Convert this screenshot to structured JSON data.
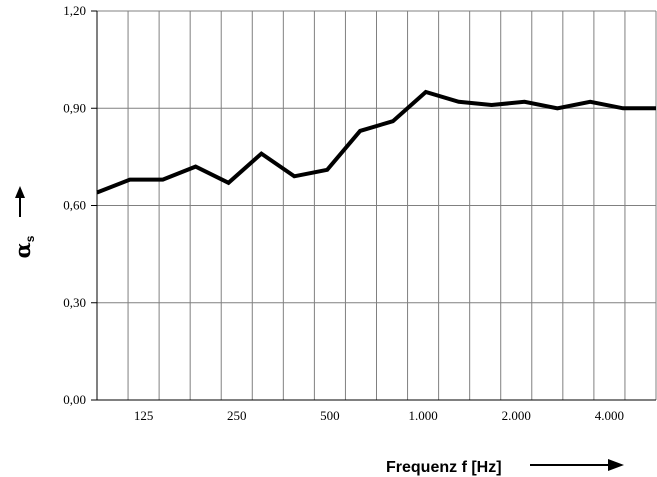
{
  "chart_data": {
    "type": "line",
    "x": [
      "100",
      "125",
      "160",
      "200",
      "250",
      "315",
      "400",
      "500",
      "630",
      "800",
      "1.000",
      "1.250",
      "1.600",
      "2.000",
      "2.500",
      "3.150",
      "4.000",
      "5.000"
    ],
    "xtick_labels": [
      "125",
      "250",
      "500",
      "1.000",
      "2.000",
      "4.000"
    ],
    "series": [
      {
        "values": [
          0.64,
          0.68,
          0.68,
          0.72,
          0.67,
          0.76,
          0.69,
          0.71,
          0.83,
          0.86,
          0.95,
          0.92,
          0.91,
          0.92,
          0.9,
          0.92,
          0.9,
          0.9
        ]
      }
    ],
    "yticks": [
      "0,00",
      "0,30",
      "0,60",
      "0,90",
      "1,20"
    ],
    "ylim": [
      0,
      1.2
    ],
    "grid": true,
    "ylabel": "α",
    "ylabel_subscript": "s",
    "xlabel": "Frequenz f [Hz]",
    "colors": {
      "line": "#000000",
      "grid": "#808080",
      "axes": "#000000"
    }
  }
}
